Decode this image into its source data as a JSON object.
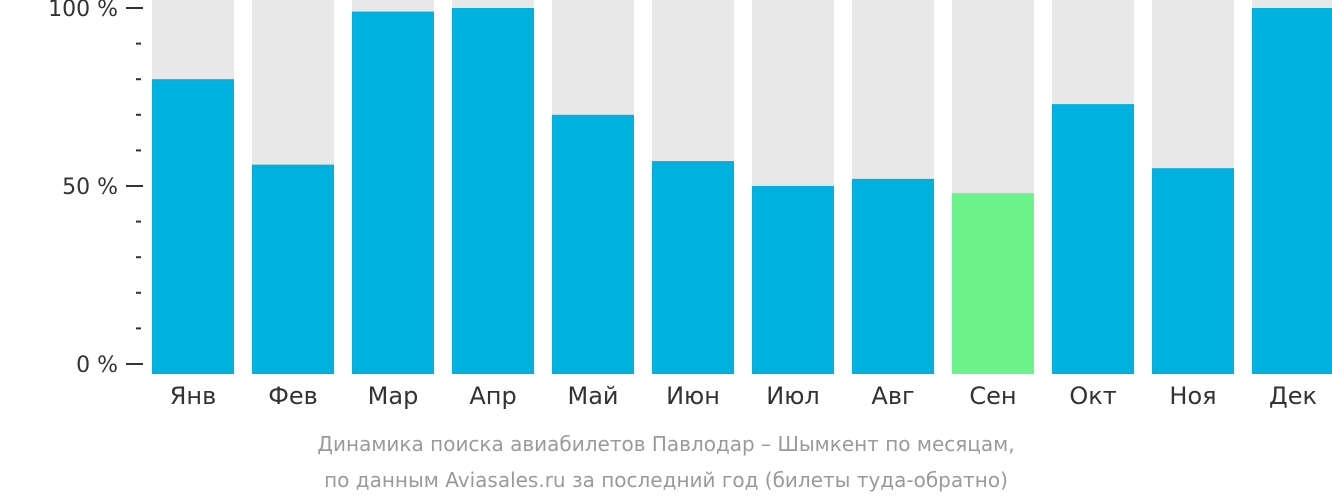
{
  "chart_data": {
    "type": "bar",
    "categories": [
      "Янв",
      "Фев",
      "Мар",
      "Апр",
      "Май",
      "Июн",
      "Июл",
      "Авг",
      "Сен",
      "Окт",
      "Ноя",
      "Дек"
    ],
    "values": [
      80,
      56,
      99,
      100,
      70,
      57,
      50,
      52,
      48,
      73,
      55,
      100
    ],
    "highlight_index": 8,
    "ylim": [
      0,
      100
    ],
    "y_ticks": [
      {
        "value": 0,
        "label": "0 %"
      },
      {
        "value": 50,
        "label": "50 %"
      },
      {
        "value": 100,
        "label": "100 %"
      }
    ],
    "minor_tick_step": 10,
    "colors": {
      "bar": "#00b0de",
      "highlight": "#6cf28a",
      "background_bar": "#e8e8e8",
      "axis_text": "#333333"
    },
    "caption": [
      "Динамика поиска авиабилетов Павлодар – Шымкент по месяцам,",
      "по данным Aviasales.ru за последний год (билеты туда-обратно)"
    ]
  }
}
